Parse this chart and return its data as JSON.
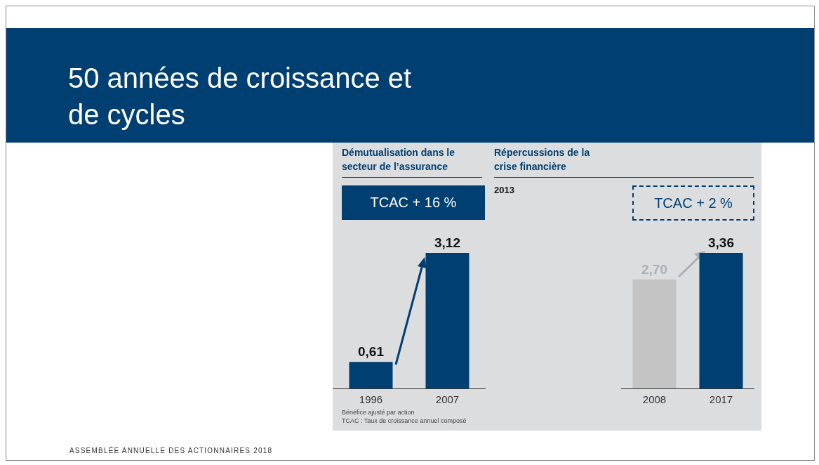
{
  "chart_data": [
    {
      "type": "bar",
      "title": "50 années de croissance et de cycles",
      "subtitle": "Démutualisation dans le secteur de l’assurance",
      "categories": [
        "1996",
        "2007"
      ],
      "values": [
        0.61,
        3.12
      ],
      "value_labels": [
        "0,61",
        "3,12"
      ],
      "colors": [
        "#003f72",
        "#003f72"
      ],
      "annotations": [
        "TCAC + 16 %",
        "Bénéfice ajusté par action",
        "TCAC : Taux de croissance annuel composé",
        "ASSEMBLÉE ANNUELLE DES ACTIONNAIRES   2018"
      ]
    },
    {
      "type": "bar",
      "title": "Répercussions de la crise financière",
      "categories": [
        "2008",
        "2017"
      ],
      "values": [
        2.7,
        3.36
      ],
      "value_labels": [
        "2,70",
        "3,36"
      ],
      "colors": [
        "#c4c4c4",
        "#003f72"
      ],
      "annotations": [
        "2013",
        "TCAC + 2 %"
      ]
    }
  ]
}
